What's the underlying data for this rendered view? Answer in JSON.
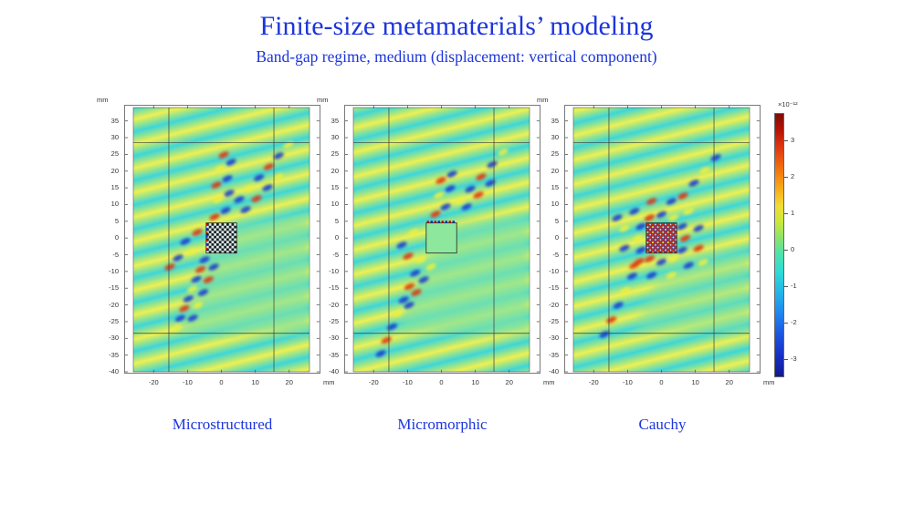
{
  "slide": {
    "title": "Finite-size metamaterials’ modeling",
    "subtitle": "Band-gap regime, medium (displacement: vertical component)",
    "text_color": "#1c35dd",
    "background": "#ffffff"
  },
  "chart_data": {
    "type": "heatmap",
    "description": "Vertical displacement field of a plane wave scattered by a finite square metamaterial block, computed with three models",
    "unit": "mm",
    "x_ticks": [
      -20,
      -10,
      0,
      10,
      20
    ],
    "y_ticks": [
      35,
      30,
      25,
      20,
      15,
      10,
      5,
      0,
      -5,
      -10,
      -15,
      -20,
      -25,
      -30,
      -35,
      -40
    ],
    "xlim": [
      -26,
      26
    ],
    "ylim": [
      -40,
      39
    ],
    "grid_x": [
      -15.5,
      15.5
    ],
    "grid_y": [
      -28.5,
      28.5
    ],
    "square_extent_mm": {
      "x": [
        -4.5,
        4.5
      ],
      "y": [
        -4.5,
        4.5
      ]
    },
    "panels": [
      {
        "caption": "Microstructured",
        "square": "checkerboard-microstructure"
      },
      {
        "caption": "Micromorphic",
        "square": "homogenized-green"
      },
      {
        "caption": "Cauchy",
        "square": "resonant-mosaic"
      }
    ],
    "colorbar": {
      "title": "×10⁻¹²",
      "ticks": [
        3,
        2,
        1,
        0,
        -1,
        -2,
        -3
      ],
      "colormap": "jet"
    },
    "field_colors": {
      "wave_cyan": "#3ed6d8",
      "wave_green": "#93e390",
      "wave_yellow": "#eef052",
      "shadow_green": "#7fe2a2",
      "hot_red": "#e03911",
      "cold_blue": "#1b3fd0",
      "accent_yellow": "#ecef3e"
    }
  }
}
